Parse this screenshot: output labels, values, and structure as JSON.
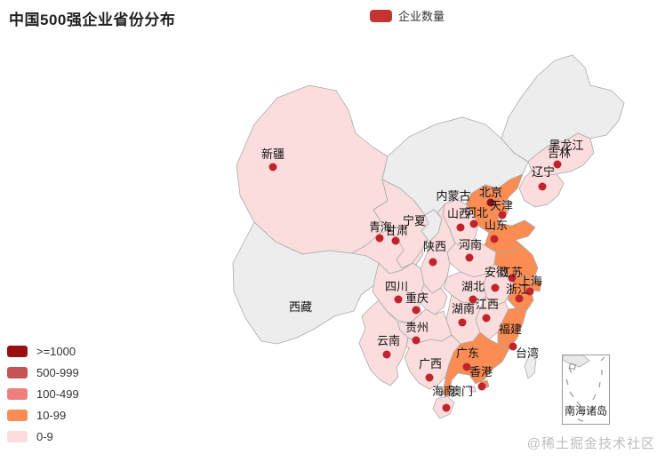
{
  "title": "中国500强企业省份分布",
  "legend": {
    "label": "企业数量",
    "swatch_color": "#c23531"
  },
  "visual_map": {
    "pieces": [
      {
        "range": ">=1000",
        "color": "#990f0f"
      },
      {
        "range": "500-999",
        "color": "#c75454"
      },
      {
        "range": "100-499",
        "color": "#ee7f7f"
      },
      {
        "range": "10-99",
        "color": "#fa8c54"
      },
      {
        "range": "0-9",
        "color": "#fbdddd"
      }
    ]
  },
  "inset": {
    "label": "南海诸岛"
  },
  "watermark": "@稀土掘金技术社区",
  "map": {
    "no_data_color": "#ededed",
    "border_color": "#aaaaaa",
    "marker_color": "#c1232b"
  },
  "chart_data": {
    "type": "map",
    "title": "中国500强企业省份分布",
    "series_name": "企业数量",
    "legend_position": "top-center",
    "visual_map_position": "bottom-left",
    "pieces": [
      ">=1000",
      "500-999",
      "100-499",
      "10-99",
      "0-9"
    ],
    "provinces": [
      {
        "id": "xizang",
        "name": "西藏",
        "category": "no-data",
        "label": [
          338,
          346
        ],
        "dot": null
      },
      {
        "id": "xinjiang",
        "name": "新疆",
        "category": "0-9",
        "label": [
          307,
          174
        ],
        "dot": [
          307,
          188
        ]
      },
      {
        "id": "qinghai",
        "name": "青海",
        "category": "0-9",
        "label": [
          428,
          256
        ],
        "dot": [
          427,
          268
        ]
      },
      {
        "id": "gansu",
        "name": "甘肃",
        "category": "0-9",
        "label": [
          446,
          260
        ],
        "dot": [
          445,
          271
        ]
      },
      {
        "id": "neimenggu",
        "name": "内蒙古",
        "category": "no-data",
        "label": [
          510,
          221
        ],
        "dot": null
      },
      {
        "id": "ningxia",
        "name": "宁夏",
        "category": "no-data",
        "label": [
          466,
          249
        ],
        "dot": null
      },
      {
        "id": "heilongjiang",
        "name": "黑龙江",
        "category": "no-data",
        "label": [
          637,
          164
        ],
        "dot": null
      },
      {
        "id": "jilin",
        "name": "吉林",
        "category": "0-9",
        "label": [
          629,
          173
        ],
        "dot": [
          627,
          185
        ]
      },
      {
        "id": "liaoning",
        "name": "辽宁",
        "category": "0-9",
        "label": [
          611,
          194
        ],
        "dot": [
          610,
          210
        ]
      },
      {
        "id": "hebei",
        "name": "河北",
        "category": "10-99",
        "label": [
          536,
          240
        ],
        "dot": [
          533,
          252
        ]
      },
      {
        "id": "beijing",
        "name": "北京",
        "category": "10-99",
        "label": [
          552,
          217
        ],
        "dot": [
          552,
          228
        ],
        "dot_color": "#8c1016"
      },
      {
        "id": "tianjin",
        "name": "天津",
        "category": "10-99",
        "label": [
          564,
          232
        ],
        "dot": [
          565,
          242
        ]
      },
      {
        "id": "shanxi",
        "name": "山西",
        "category": "0-9",
        "label": [
          516,
          241
        ],
        "dot": [
          518,
          256
        ]
      },
      {
        "id": "shandong",
        "name": "山东",
        "category": "10-99",
        "label": [
          558,
          254
        ],
        "dot": [
          556,
          269
        ]
      },
      {
        "id": "henan",
        "name": "河南",
        "category": "0-9",
        "label": [
          529,
          276
        ],
        "dot": [
          528,
          290
        ]
      },
      {
        "id": "shaanxi",
        "name": "陕西",
        "category": "0-9",
        "label": [
          489,
          278
        ],
        "dot": [
          487,
          295
        ]
      },
      {
        "id": "jiangsu",
        "name": "江苏",
        "category": "10-99",
        "label": [
          575,
          307
        ],
        "dot": [
          576,
          313
        ]
      },
      {
        "id": "anhui",
        "name": "安徽",
        "category": "0-9",
        "label": [
          558,
          307
        ],
        "dot": [
          557,
          324
        ]
      },
      {
        "id": "shanghai",
        "name": "上海",
        "category": "10-99",
        "label": [
          597,
          317
        ],
        "dot": [
          596,
          328
        ]
      },
      {
        "id": "zhejiang",
        "name": "浙江",
        "category": "10-99",
        "label": [
          582,
          326
        ],
        "dot": [
          584,
          336
        ]
      },
      {
        "id": "hubei",
        "name": "湖北",
        "category": "0-9",
        "label": [
          532,
          323
        ],
        "dot": [
          532,
          337
        ]
      },
      {
        "id": "sichuan",
        "name": "四川",
        "category": "0-9",
        "label": [
          446,
          323
        ],
        "dot": [
          448,
          337
        ]
      },
      {
        "id": "chongqing",
        "name": "重庆",
        "category": "0-9",
        "label": [
          469,
          336
        ],
        "dot": [
          468,
          349
        ]
      },
      {
        "id": "jiangxi",
        "name": "江西",
        "category": "0-9",
        "label": [
          548,
          343
        ],
        "dot": [
          547,
          358
        ]
      },
      {
        "id": "hunan",
        "name": "湖南",
        "category": "0-9",
        "label": [
          521,
          348
        ],
        "dot": [
          520,
          363
        ]
      },
      {
        "id": "guizhou",
        "name": "贵州",
        "category": "0-9",
        "label": [
          469,
          369
        ],
        "dot": [
          468,
          383
        ]
      },
      {
        "id": "yunnan",
        "name": "云南",
        "category": "0-9",
        "label": [
          437,
          384
        ],
        "dot": [
          435,
          399
        ]
      },
      {
        "id": "fujian",
        "name": "福建",
        "category": "10-99",
        "label": [
          574,
          371
        ],
        "dot": [
          577,
          390
        ]
      },
      {
        "id": "taiwan",
        "name": "台湾",
        "category": "no-data",
        "label": [
          593,
          398
        ],
        "dot": null
      },
      {
        "id": "guangdong",
        "name": "广东",
        "category": "10-99",
        "label": [
          526,
          398
        ],
        "dot": [
          525,
          413
        ]
      },
      {
        "id": "guangxi",
        "name": "广西",
        "category": "0-9",
        "label": [
          484,
          410
        ],
        "dot": [
          483,
          425
        ]
      },
      {
        "id": "hongkong",
        "name": "香港",
        "category": "10-99",
        "label": [
          541,
          419
        ],
        "dot": [
          542,
          435
        ]
      },
      {
        "id": "aomen",
        "name": "澳门",
        "category": "0-9",
        "label": [
          519,
          441
        ],
        "dot": null
      },
      {
        "id": "hainan",
        "name": "海南",
        "category": "0-9",
        "label": [
          499,
          441
        ],
        "dot": [
          502,
          459
        ]
      }
    ]
  }
}
